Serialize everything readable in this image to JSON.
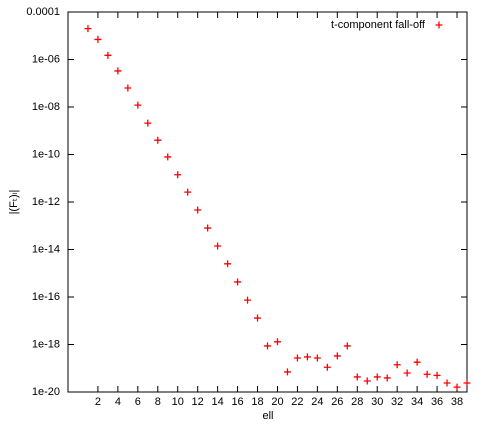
{
  "chart_data": {
    "type": "scatter",
    "x_label": "ell",
    "y_label": "|(Fₜ)ₗ|",
    "log_y": true,
    "xlim": [
      -1,
      39
    ],
    "ylim": [
      1e-20,
      0.0001
    ],
    "xticks": [
      2,
      4,
      6,
      8,
      10,
      12,
      14,
      16,
      18,
      20,
      22,
      24,
      26,
      28,
      30,
      32,
      34,
      36,
      38
    ],
    "yticks": [
      0.0001,
      {
        "value": 1e-06,
        "label": "1e-06"
      },
      {
        "value": 1e-08,
        "label": "1e-08"
      },
      {
        "value": 1e-10,
        "label": "1e-10"
      },
      {
        "value": 1e-12,
        "label": "1e-12"
      },
      {
        "value": 1e-14,
        "label": "1e-14"
      },
      {
        "value": 1e-16,
        "label": "1e-16"
      },
      {
        "value": 1e-18,
        "label": "1e-18"
      },
      {
        "value": 1e-20,
        "label": "1e-20"
      }
    ],
    "legend_position": "top-right",
    "series": [
      {
        "name": "t-component fall-off",
        "color": "#ff0000",
        "x": [
          1,
          2,
          3,
          4,
          5,
          6,
          7,
          8,
          9,
          10,
          11,
          12,
          13,
          14,
          15,
          16,
          17,
          18,
          19,
          20,
          21,
          22,
          23,
          24,
          25,
          26,
          27,
          28,
          29,
          30,
          31,
          32,
          33,
          34,
          35,
          36,
          37,
          38,
          39
        ],
        "values": [
          2e-05,
          7e-06,
          1.5e-06,
          3.3e-07,
          6.3e-08,
          1.2e-08,
          2.1e-09,
          4e-10,
          7.9e-11,
          1.4e-11,
          2.6e-12,
          4.6e-13,
          8e-14,
          1.4e-14,
          2.5e-15,
          4.3e-16,
          7.4e-17,
          1.3e-17,
          8.7e-19,
          1.3e-18,
          7e-20,
          2.7e-19,
          3e-19,
          2.7e-19,
          1.1e-19,
          3.3e-19,
          8.7e-19,
          4.3e-20,
          2.9e-20,
          4.3e-20,
          3.9e-20,
          1.4e-19,
          6.3e-20,
          1.8e-19,
          5.6e-20,
          5e-20,
          2.4e-20,
          1.6e-20,
          2.4e-20
        ]
      }
    ]
  }
}
